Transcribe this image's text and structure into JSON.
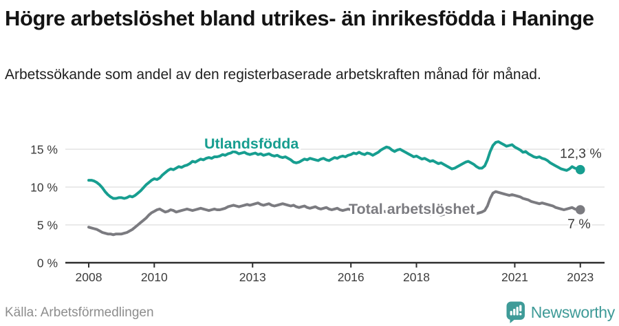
{
  "header": {
    "title": "Högre arbetslöshet bland utrikes- än inrikesfödda i Haninge",
    "subtitle": "Arbetssökande som andel av den registerbaserade arbetskraften månad för månad."
  },
  "chart_data": {
    "type": "line",
    "title": "Högre arbetslöshet bland utrikes- än inrikesfödda i Haninge",
    "subtitle": "Arbetssökande som andel av den registerbaserade arbetskraften månad för månad.",
    "x_start_year": 2008,
    "x_step_months": 1,
    "x_end": "2023-01",
    "xticks": [
      2008,
      2010,
      2013,
      2016,
      2018,
      2021,
      2023
    ],
    "yticks": [
      0,
      5,
      10,
      15
    ],
    "ytick_suffix": " %",
    "ylim": [
      0,
      17
    ],
    "grid": "horizontal",
    "legend_position": "inline-labels",
    "series": [
      {
        "name": "Utlandsfödda",
        "color": "#179e90",
        "end_label": "12,3 %",
        "end_value": 12.3,
        "values": [
          10.9,
          10.9,
          10.8,
          10.6,
          10.3,
          9.9,
          9.4,
          9.0,
          8.7,
          8.5,
          8.5,
          8.6,
          8.6,
          8.5,
          8.6,
          8.8,
          8.7,
          8.9,
          9.2,
          9.5,
          9.9,
          10.3,
          10.6,
          10.9,
          11.1,
          11.0,
          11.2,
          11.6,
          11.9,
          12.2,
          12.4,
          12.3,
          12.5,
          12.7,
          12.6,
          12.8,
          12.9,
          13.1,
          13.4,
          13.3,
          13.5,
          13.7,
          13.6,
          13.8,
          13.9,
          13.8,
          14.0,
          14.0,
          14.1,
          14.3,
          14.2,
          14.4,
          14.5,
          14.7,
          14.6,
          14.4,
          14.5,
          14.6,
          14.4,
          14.3,
          14.4,
          14.5,
          14.3,
          14.4,
          14.2,
          14.3,
          14.4,
          14.2,
          14.1,
          14.2,
          14.0,
          13.9,
          14.0,
          13.8,
          13.6,
          13.3,
          13.2,
          13.3,
          13.5,
          13.7,
          13.6,
          13.8,
          13.7,
          13.6,
          13.5,
          13.7,
          13.8,
          13.6,
          13.5,
          13.7,
          13.9,
          13.8,
          14.0,
          14.1,
          14.0,
          14.2,
          14.3,
          14.5,
          14.4,
          14.6,
          14.4,
          14.3,
          14.5,
          14.4,
          14.2,
          14.4,
          14.6,
          14.9,
          15.1,
          15.3,
          15.2,
          14.9,
          14.7,
          14.9,
          15.0,
          14.8,
          14.6,
          14.4,
          14.2,
          14.0,
          14.1,
          13.9,
          13.7,
          13.8,
          13.6,
          13.4,
          13.5,
          13.3,
          13.1,
          13.2,
          13.0,
          12.8,
          12.6,
          12.4,
          12.5,
          12.7,
          12.9,
          13.1,
          13.3,
          13.4,
          13.2,
          13.0,
          12.7,
          12.5,
          12.5,
          12.8,
          13.6,
          14.7,
          15.5,
          15.9,
          16.0,
          15.8,
          15.6,
          15.4,
          15.5,
          15.6,
          15.3,
          15.1,
          14.9,
          14.6,
          14.7,
          14.4,
          14.2,
          14.0,
          13.9,
          14.0,
          13.8,
          13.7,
          13.5,
          13.2,
          13.0,
          12.8,
          12.6,
          12.4,
          12.3,
          12.2,
          12.4,
          12.7,
          12.5,
          12.4,
          12.3
        ]
      },
      {
        "name": "Total arbetslöshet",
        "color": "#7b7b80",
        "end_label": "7 %",
        "end_value": 7.0,
        "values": [
          4.7,
          4.6,
          4.5,
          4.4,
          4.2,
          4.0,
          3.9,
          3.8,
          3.8,
          3.7,
          3.8,
          3.8,
          3.8,
          3.9,
          4.0,
          4.2,
          4.4,
          4.7,
          5.0,
          5.3,
          5.6,
          5.9,
          6.3,
          6.6,
          6.8,
          7.0,
          7.1,
          6.9,
          6.7,
          6.8,
          7.0,
          6.9,
          6.7,
          6.8,
          6.9,
          7.0,
          7.1,
          7.0,
          6.9,
          7.0,
          7.1,
          7.2,
          7.1,
          7.0,
          6.9,
          7.0,
          7.1,
          7.0,
          7.0,
          7.1,
          7.2,
          7.4,
          7.5,
          7.6,
          7.5,
          7.4,
          7.5,
          7.6,
          7.7,
          7.6,
          7.7,
          7.8,
          7.9,
          7.7,
          7.6,
          7.7,
          7.8,
          7.6,
          7.5,
          7.6,
          7.7,
          7.8,
          7.7,
          7.6,
          7.5,
          7.6,
          7.4,
          7.3,
          7.4,
          7.5,
          7.3,
          7.2,
          7.3,
          7.4,
          7.2,
          7.1,
          7.2,
          7.3,
          7.1,
          7.0,
          7.1,
          7.2,
          7.0,
          6.9,
          7.0,
          7.1,
          7.0,
          6.9,
          7.0,
          7.1,
          6.9,
          6.8,
          6.9,
          7.0,
          6.8,
          6.7,
          6.8,
          6.9,
          6.8,
          6.7,
          6.8,
          6.9,
          6.7,
          6.6,
          6.7,
          6.8,
          6.6,
          6.5,
          6.6,
          6.7,
          6.6,
          6.5,
          6.6,
          6.7,
          6.5,
          6.4,
          6.5,
          6.6,
          6.4,
          6.3,
          6.4,
          6.5,
          6.4,
          6.5,
          6.6,
          6.5,
          6.4,
          6.5,
          6.6,
          6.7,
          6.5,
          6.4,
          6.5,
          6.6,
          6.7,
          6.9,
          7.5,
          8.5,
          9.2,
          9.4,
          9.3,
          9.2,
          9.1,
          9.0,
          8.9,
          9.0,
          8.9,
          8.8,
          8.7,
          8.5,
          8.4,
          8.3,
          8.1,
          8.0,
          7.9,
          7.8,
          7.9,
          7.8,
          7.7,
          7.6,
          7.5,
          7.3,
          7.2,
          7.1,
          7.0,
          7.1,
          7.2,
          7.3,
          7.1,
          7.0,
          7.0
        ]
      }
    ]
  },
  "footer": {
    "source": "Källa: Arbetsförmedlingen",
    "brand": "Newsworthy"
  },
  "colors": {
    "accent_teal": "#179e90",
    "series_gray": "#7b7b80",
    "logo_teal": "#3f9b98"
  }
}
